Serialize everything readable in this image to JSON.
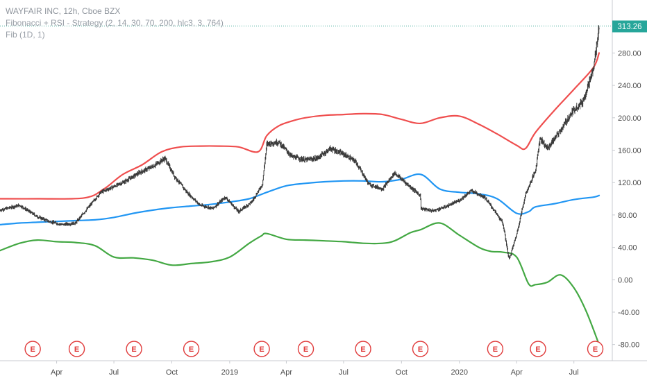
{
  "legend": {
    "title": "WAYFAIR INC, 12h, Cboe BZX",
    "strategy": "Fibonacci + RSI - Strategy (2, 14, 30, 70, 200, hlc3, 3, 764)",
    "fib": "Fib (1D, 1)"
  },
  "last_price_label": "313.26",
  "colors": {
    "upper_band": "#ef4e4e",
    "middle_band": "#2196f3",
    "lower_band": "#43a843",
    "candles": "#3b3b3b",
    "earnings_marker": "#e03b3b",
    "axis_text": "#4a4a4a"
  },
  "chart_data": {
    "type": "line",
    "ylim": [
      -100,
      330
    ],
    "y_ticks": [
      -80,
      -40,
      0,
      40,
      80,
      120,
      160,
      200,
      240,
      280
    ],
    "y_tick_labels": [
      "-80.00",
      "-40.00",
      "0.00",
      "40.00",
      "80.00",
      "120.00",
      "160.00",
      "200.00",
      "240.00",
      "280.00"
    ],
    "x_range": [
      "2018-01-01",
      "2020-08-31"
    ],
    "x_ticks": [
      {
        "date": "2018-04-01",
        "label": "Apr"
      },
      {
        "date": "2018-07-01",
        "label": "Jul"
      },
      {
        "date": "2018-10-01",
        "label": "Oct"
      },
      {
        "date": "2019-01-01",
        "label": "2019"
      },
      {
        "date": "2019-04-01",
        "label": "Apr"
      },
      {
        "date": "2019-07-01",
        "label": "Jul"
      },
      {
        "date": "2019-10-01",
        "label": "Oct"
      },
      {
        "date": "2020-01-01",
        "label": "2020"
      },
      {
        "date": "2020-04-01",
        "label": "Apr"
      },
      {
        "date": "2020-07-01",
        "label": "Jul"
      }
    ],
    "last_price": 313.26,
    "series": [
      {
        "key": "price",
        "x": [
          "2018-01-01",
          "2018-02-01",
          "2018-03-01",
          "2018-03-20",
          "2018-04-10",
          "2018-05-01",
          "2018-05-20",
          "2018-06-10",
          "2018-07-01",
          "2018-07-20",
          "2018-08-10",
          "2018-09-01",
          "2018-09-20",
          "2018-10-05",
          "2018-10-25",
          "2018-11-15",
          "2018-12-05",
          "2018-12-25",
          "2019-01-15",
          "2019-02-05",
          "2019-02-22",
          "2019-03-01",
          "2019-03-20",
          "2019-04-10",
          "2019-05-01",
          "2019-05-20",
          "2019-06-10",
          "2019-07-01",
          "2019-07-20",
          "2019-08-10",
          "2019-09-01",
          "2019-09-20",
          "2019-10-10",
          "2019-10-31",
          "2019-11-01",
          "2019-11-20",
          "2019-12-10",
          "2020-01-01",
          "2020-01-20",
          "2020-02-10",
          "2020-02-25",
          "2020-03-10",
          "2020-03-20",
          "2020-04-01",
          "2020-04-15",
          "2020-05-01",
          "2020-05-08",
          "2020-05-20",
          "2020-06-10",
          "2020-07-01",
          "2020-07-15",
          "2020-08-01",
          "2020-08-10"
        ],
        "y": [
          86,
          92,
          78,
          72,
          68,
          70,
          88,
          108,
          115,
          122,
          132,
          140,
          150,
          128,
          108,
          92,
          88,
          102,
          84,
          96,
          118,
          168,
          170,
          152,
          148,
          150,
          162,
          155,
          146,
          118,
          112,
          132,
          118,
          104,
          88,
          85,
          90,
          98,
          110,
          102,
          86,
          70,
          25,
          56,
          105,
          135,
          175,
          162,
          185,
          210,
          220,
          260,
          313
        ]
      },
      {
        "key": "upper",
        "x": [
          "2018-01-01",
          "2018-03-01",
          "2018-05-15",
          "2018-06-15",
          "2018-07-15",
          "2018-08-15",
          "2018-09-15",
          "2018-10-15",
          "2018-11-15",
          "2018-12-15",
          "2019-01-15",
          "2019-02-15",
          "2019-03-01",
          "2019-03-20",
          "2019-04-10",
          "2019-05-01",
          "2019-06-01",
          "2019-07-01",
          "2019-08-01",
          "2019-09-01",
          "2019-10-01",
          "2019-10-31",
          "2019-12-01",
          "2020-01-01",
          "2020-02-01",
          "2020-03-01",
          "2020-04-01",
          "2020-04-15",
          "2020-05-01",
          "2020-06-01",
          "2020-07-01",
          "2020-08-01",
          "2020-08-10"
        ],
        "y": [
          100,
          100,
          101,
          112,
          130,
          142,
          158,
          164,
          165,
          165,
          164,
          158,
          178,
          190,
          196,
          200,
          203,
          204,
          205,
          204,
          198,
          193,
          200,
          202,
          192,
          180,
          166,
          162,
          182,
          210,
          235,
          262,
          280
        ]
      },
      {
        "key": "middle",
        "x": [
          "2018-01-01",
          "2018-02-01",
          "2018-03-01",
          "2018-04-01",
          "2018-05-01",
          "2018-06-01",
          "2018-07-01",
          "2018-08-01",
          "2018-09-01",
          "2018-10-01",
          "2018-11-01",
          "2018-12-01",
          "2019-01-01",
          "2019-02-01",
          "2019-03-01",
          "2019-04-01",
          "2019-05-01",
          "2019-06-01",
          "2019-07-01",
          "2019-08-01",
          "2019-09-01",
          "2019-10-01",
          "2019-11-01",
          "2019-12-01",
          "2020-01-01",
          "2020-02-01",
          "2020-03-01",
          "2020-04-01",
          "2020-04-20",
          "2020-05-01",
          "2020-06-01",
          "2020-07-01",
          "2020-08-01",
          "2020-08-10"
        ],
        "y": [
          68,
          70,
          71,
          72,
          73,
          74,
          77,
          82,
          86,
          89,
          91,
          93,
          96,
          100,
          108,
          116,
          119,
          121,
          122,
          122,
          121,
          124,
          130,
          112,
          108,
          106,
          100,
          82,
          84,
          90,
          94,
          99,
          102,
          104
        ]
      },
      {
        "key": "lower",
        "x": [
          "2018-01-01",
          "2018-02-01",
          "2018-03-01",
          "2018-04-01",
          "2018-05-01",
          "2018-06-01",
          "2018-07-01",
          "2018-08-01",
          "2018-09-01",
          "2018-10-01",
          "2018-11-01",
          "2018-12-01",
          "2019-01-01",
          "2019-02-01",
          "2019-02-20",
          "2019-03-01",
          "2019-04-01",
          "2019-05-01",
          "2019-06-01",
          "2019-07-01",
          "2019-08-01",
          "2019-09-01",
          "2019-09-20",
          "2019-10-15",
          "2019-11-01",
          "2019-12-01",
          "2020-01-01",
          "2020-02-01",
          "2020-02-20",
          "2020-03-10",
          "2020-04-01",
          "2020-04-20",
          "2020-05-01",
          "2020-05-20",
          "2020-06-10",
          "2020-07-01",
          "2020-07-20",
          "2020-08-10"
        ],
        "y": [
          36,
          45,
          49,
          47,
          46,
          42,
          28,
          27,
          24,
          18,
          20,
          22,
          28,
          45,
          54,
          57,
          50,
          49,
          48,
          47,
          45,
          45,
          48,
          58,
          62,
          70,
          55,
          40,
          35,
          34,
          28,
          -5,
          -6,
          -3,
          6,
          -10,
          -38,
          -80
        ]
      }
    ],
    "earnings_markers": {
      "label": "E",
      "dates": [
        "2018-02-22",
        "2018-05-03",
        "2018-08-02",
        "2018-11-01",
        "2019-02-21",
        "2019-05-02",
        "2019-08-01",
        "2019-10-31",
        "2020-02-27",
        "2020-05-05",
        "2020-08-04"
      ]
    }
  }
}
